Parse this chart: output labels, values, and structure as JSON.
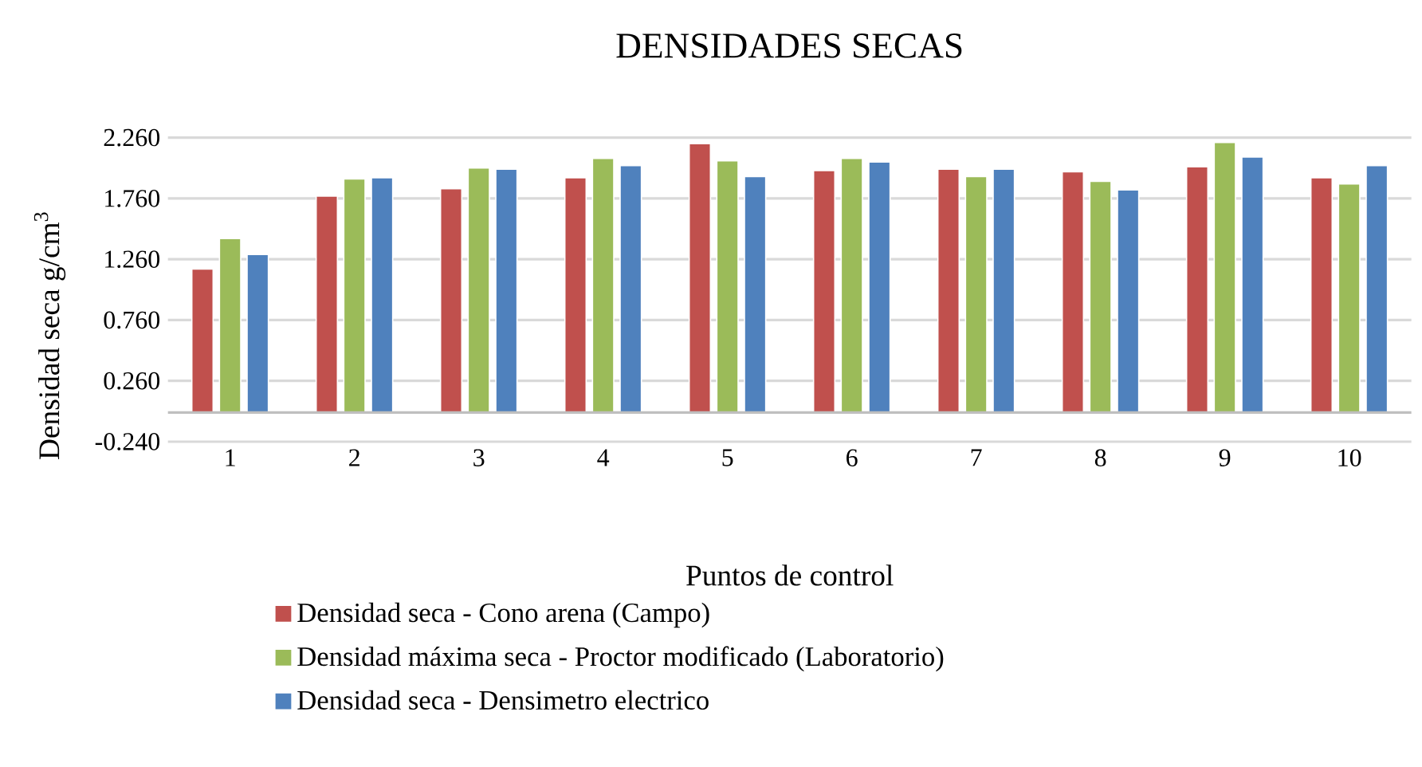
{
  "chart_data": {
    "type": "bar",
    "title": "DENSIDADES SECAS",
    "xlabel": "Puntos de control",
    "ylabel": "Densidad  seca g/cm$^{3}$",
    "categories": [
      "1",
      "2",
      "3",
      "4",
      "5",
      "6",
      "7",
      "8",
      "9",
      "10"
    ],
    "series": [
      {
        "name": "Densidad seca - Cono arena (Campo)",
        "color": "#c0504d",
        "values": [
          1.18,
          1.78,
          1.84,
          1.93,
          2.21,
          1.99,
          2.0,
          1.98,
          2.02,
          1.93
        ]
      },
      {
        "name": "Densidad máxima seca  - Proctor modificado (Laboratorio)",
        "color": "#9bbb59",
        "values": [
          1.43,
          1.92,
          2.01,
          2.09,
          2.07,
          2.09,
          1.94,
          1.9,
          2.22,
          1.88
        ]
      },
      {
        "name": "Densidad seca - Densimetro electrico",
        "color": "#4f81bd",
        "values": [
          1.3,
          1.93,
          2.0,
          2.03,
          1.94,
          2.06,
          2.0,
          1.83,
          2.1,
          2.03
        ]
      }
    ],
    "ylim": [
      -0.24,
      2.26
    ],
    "yticks": [
      {
        "value": -0.24,
        "label": "-0.240"
      },
      {
        "value": 0.26,
        "label": "0.260"
      },
      {
        "value": 0.76,
        "label": "0.760"
      },
      {
        "value": 1.26,
        "label": "1.260"
      },
      {
        "value": 1.76,
        "label": "1.760"
      },
      {
        "value": 2.26,
        "label": "2.260"
      }
    ],
    "grid": "y",
    "legend": "bottom"
  }
}
